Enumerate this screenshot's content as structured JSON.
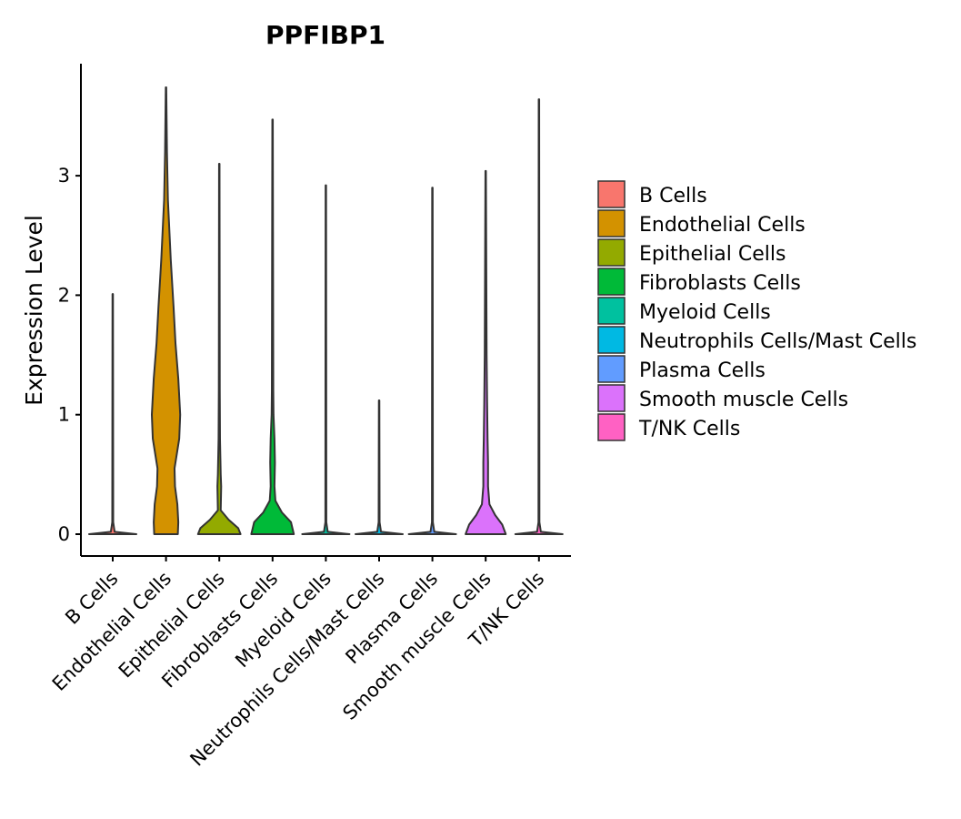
{
  "chart_data": {
    "type": "violin",
    "title": "PPFIBP1",
    "xlabel": "",
    "ylabel": "Expression Level",
    "ylim": [
      -0.18,
      3.95
    ],
    "yticks": [
      0,
      1,
      2,
      3
    ],
    "grid": false,
    "legend_position": "right",
    "categories": [
      "B Cells",
      "Endothelial Cells",
      "Epithelial Cells",
      "Fibroblasts Cells",
      "Myeloid Cells",
      "Neutrophils Cells/Mast Cells",
      "Plasma Cells",
      "Smooth muscle Cells",
      "T/NK Cells"
    ],
    "colors": [
      "#F8766D",
      "#D39200",
      "#93AA00",
      "#00BA38",
      "#00C19F",
      "#00B9E3",
      "#619CFF",
      "#DB72FB",
      "#FF61C3"
    ],
    "max_expression": [
      2.01,
      3.74,
      3.1,
      3.47,
      2.92,
      1.12,
      2.9,
      3.04,
      3.64
    ],
    "density_profiles": [
      [
        [
          0,
          1.0
        ],
        [
          0.02,
          0.08
        ],
        [
          0.1,
          0.02
        ],
        [
          2.01,
          0.01
        ]
      ],
      [
        [
          0,
          0.5
        ],
        [
          0.1,
          0.52
        ],
        [
          0.25,
          0.48
        ],
        [
          0.4,
          0.38
        ],
        [
          0.55,
          0.36
        ],
        [
          0.8,
          0.56
        ],
        [
          1.0,
          0.6
        ],
        [
          1.3,
          0.52
        ],
        [
          1.6,
          0.4
        ],
        [
          1.9,
          0.32
        ],
        [
          2.3,
          0.2
        ],
        [
          2.8,
          0.08
        ],
        [
          3.2,
          0.04
        ],
        [
          3.74,
          0.01
        ]
      ],
      [
        [
          0,
          0.9
        ],
        [
          0.05,
          0.8
        ],
        [
          0.12,
          0.4
        ],
        [
          0.2,
          0.06
        ],
        [
          0.4,
          0.08
        ],
        [
          0.5,
          0.06
        ],
        [
          0.8,
          0.03
        ],
        [
          1.2,
          0.02
        ],
        [
          3.1,
          0.01
        ]
      ],
      [
        [
          0,
          0.9
        ],
        [
          0.1,
          0.78
        ],
        [
          0.18,
          0.4
        ],
        [
          0.28,
          0.12
        ],
        [
          0.4,
          0.08
        ],
        [
          0.6,
          0.1
        ],
        [
          0.8,
          0.08
        ],
        [
          1.0,
          0.04
        ],
        [
          1.2,
          0.03
        ],
        [
          3.47,
          0.01
        ]
      ],
      [
        [
          0,
          1.0
        ],
        [
          0.02,
          0.08
        ],
        [
          0.1,
          0.02
        ],
        [
          2.92,
          0.01
        ]
      ],
      [
        [
          0,
          1.0
        ],
        [
          0.02,
          0.08
        ],
        [
          0.1,
          0.02
        ],
        [
          1.12,
          0.01
        ]
      ],
      [
        [
          0,
          1.0
        ],
        [
          0.02,
          0.08
        ],
        [
          0.1,
          0.02
        ],
        [
          2.9,
          0.01
        ]
      ],
      [
        [
          0,
          0.85
        ],
        [
          0.08,
          0.7
        ],
        [
          0.16,
          0.4
        ],
        [
          0.25,
          0.16
        ],
        [
          0.4,
          0.1
        ],
        [
          0.6,
          0.1
        ],
        [
          0.8,
          0.08
        ],
        [
          1.1,
          0.06
        ],
        [
          1.5,
          0.04
        ],
        [
          3.04,
          0.01
        ]
      ],
      [
        [
          0,
          1.0
        ],
        [
          0.02,
          0.08
        ],
        [
          0.1,
          0.02
        ],
        [
          3.64,
          0.01
        ]
      ]
    ]
  }
}
